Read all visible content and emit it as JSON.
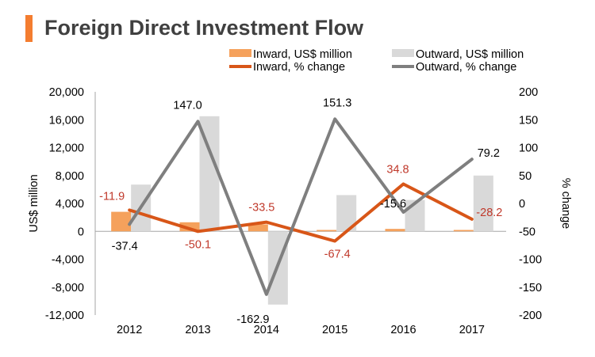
{
  "title": "Foreign Direct Investment Flow",
  "colors": {
    "title_bar": "#f47d30",
    "inward_bar": "#f5a15c",
    "outward_bar": "#d9d9d9",
    "inward_line": "#d85618",
    "outward_line": "#7f7f7f",
    "inward_label": "#c0392b",
    "outward_label": "#000000",
    "axis": "#a6a6a6"
  },
  "chart_data": {
    "type": "bar+line",
    "title": "Foreign Direct Investment Flow",
    "categories": [
      "2012",
      "2013",
      "2014",
      "2015",
      "2016",
      "2017"
    ],
    "series": [
      {
        "name": "Inward, US$ million",
        "kind": "bar",
        "axis": "left",
        "values": [
          2800,
          1300,
          1000,
          200,
          350,
          200
        ]
      },
      {
        "name": "Outward, US$ million",
        "kind": "bar",
        "axis": "left",
        "values": [
          6700,
          16500,
          -10500,
          5200,
          4500,
          8000
        ]
      },
      {
        "name": "Inward, % change",
        "kind": "line",
        "axis": "right",
        "values": [
          -11.9,
          -50.1,
          -33.5,
          -67.4,
          34.8,
          -28.2
        ],
        "labels": [
          "-11.9",
          "-50.1",
          "-33.5",
          "-67.4",
          "34.8",
          "-28.2"
        ]
      },
      {
        "name": "Outward, % change",
        "kind": "line",
        "axis": "right",
        "values": [
          -37.4,
          147.0,
          -162.9,
          151.3,
          -15.6,
          79.2
        ],
        "labels": [
          "-37.4",
          "147.0",
          "-162.9",
          "151.3",
          "-15.6",
          "79.2"
        ]
      }
    ],
    "ylabel": "US$ million",
    "y2label": "% change",
    "ylim": [
      -12000,
      20000
    ],
    "y2lim": [
      -200,
      200
    ],
    "yticks": [
      "20,000",
      "16,000",
      "12,000",
      "8,000",
      "4,000",
      "0",
      "-4,000",
      "-8,000",
      "-12,000"
    ],
    "y2ticks": [
      "200",
      "150",
      "100",
      "50",
      "0",
      "-50",
      "-100",
      "-150",
      "-200"
    ],
    "legend": [
      "Inward, US$ million",
      "Outward, US$ million",
      "Inward, % change",
      "Outward, % change"
    ]
  }
}
